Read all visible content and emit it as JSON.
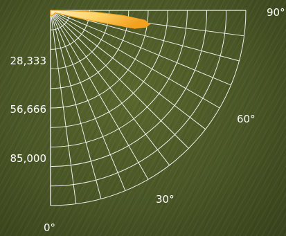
{
  "chart_data": {
    "type": "polar",
    "title": "",
    "radial_axis": {
      "range": [
        0,
        113333
      ],
      "tick_labels": [
        "28,333",
        "56,666",
        "85,000"
      ],
      "tick_values": [
        28333,
        56666,
        85000
      ],
      "rings": 10
    },
    "angular_axis": {
      "range_deg": [
        0,
        90
      ],
      "tick_labels": [
        "0°",
        "30°",
        "60°",
        "90°"
      ],
      "tick_values": [
        0,
        30,
        60,
        90
      ],
      "spoke_step_deg": 7.5
    },
    "series": [
      {
        "angles_deg": [
          0,
          5,
          10,
          15,
          20,
          25,
          30,
          35,
          40,
          45,
          50,
          55,
          60,
          65,
          70,
          72,
          74,
          76,
          78,
          80,
          82,
          84,
          86,
          88,
          90
        ],
        "values": [
          3000,
          3000,
          3000,
          3000,
          3000,
          3000,
          3000,
          3000,
          3000,
          3000,
          3000,
          3000,
          3000,
          4000,
          6000,
          8000,
          14000,
          25000,
          50000,
          56000,
          58000,
          55000,
          42000,
          25000,
          5000
        ],
        "color": "#F5A623"
      }
    ],
    "colors": {
      "grid": "#ffffff",
      "fill_light": "#FFE7A8",
      "fill_dark": "#F0A020"
    }
  }
}
